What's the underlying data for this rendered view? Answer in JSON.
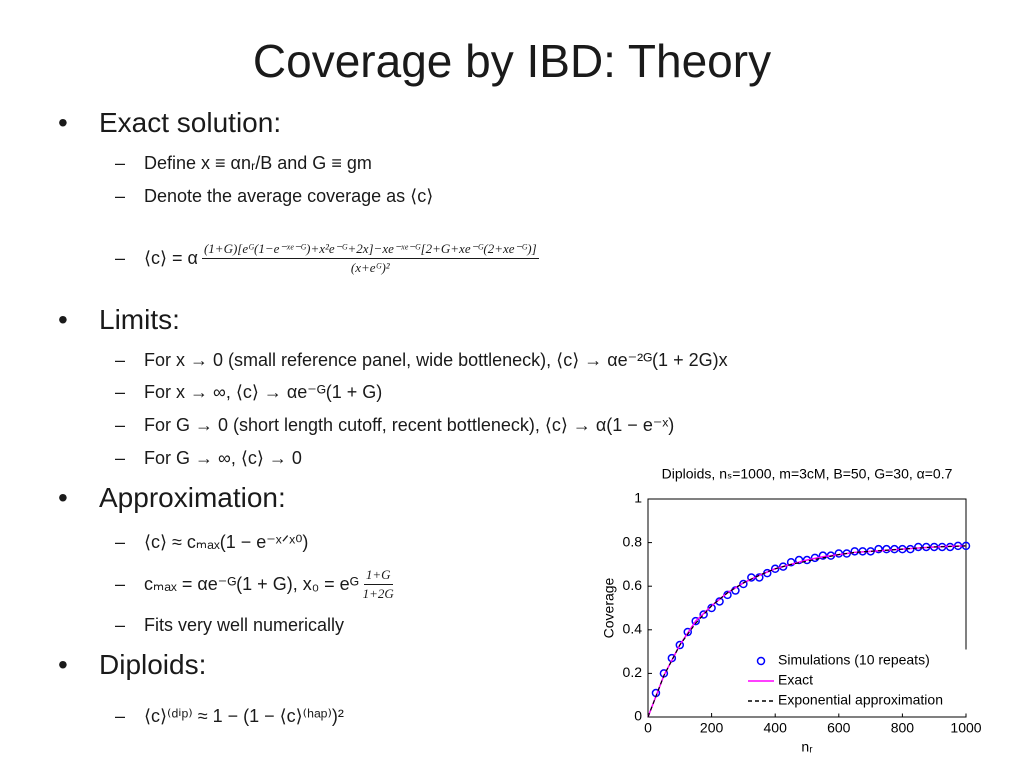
{
  "slide": {
    "title": "Coverage by IBD: Theory",
    "sections": [
      {
        "heading": "Exact solution:",
        "items": [
          "Define x ≡ αnᵣ/B and G ≡ gm",
          "Denote the average coverage as ⟨c⟩",
          {
            "text": "⟨c⟩ = α",
            "numerator": "(1+G)[eᴳ(1−e⁻ˣᵉ⁻ᴳ)+x²e⁻ᴳ+2x]−xe⁻ˣᵉ⁻ᴳ[2+G+xe⁻ᴳ(2+xe⁻ᴳ)]",
            "denominator": "(x+eᴳ)²"
          }
        ]
      },
      {
        "heading": "Limits:",
        "items": [
          "For x → 0 (small reference panel, wide bottleneck), ⟨c⟩ → αe⁻²ᴳ(1 + 2G)x",
          "For x → ∞, ⟨c⟩ → αe⁻ᴳ(1 + G)",
          "For G → 0 (short length cutoff, recent bottleneck), ⟨c⟩ → α(1 − e⁻ˣ)",
          "For G → ∞, ⟨c⟩ → 0"
        ]
      },
      {
        "heading": "Approximation:",
        "items": [
          "⟨c⟩ ≈ cₘₐₓ(1 − e⁻ˣᐟˣ⁰)",
          {
            "text": "cₘₐₓ = αe⁻ᴳ(1 + G), x₀ = eᴳ",
            "numerator": "1+G",
            "denominator": "1+2G"
          },
          "Fits very well numerically"
        ]
      },
      {
        "heading": "Diploids:",
        "items": [
          "⟨c⟩⁽ᵈⁱᵖ⁾ ≈ 1 − (1 − ⟨c⟩⁽ʰᵃᵖ⁾)²"
        ]
      }
    ]
  },
  "chart_data": {
    "type": "scatter",
    "title": "Diploids, nₛ=1000, m=3cM, B=50, G=30, α=0.7",
    "xlabel": "nᵣ",
    "ylabel": "Coverage",
    "xlim": [
      0,
      1000
    ],
    "ylim": [
      0,
      1
    ],
    "xticks": [
      0,
      200,
      400,
      600,
      800,
      1000
    ],
    "yticks": [
      0,
      0.2,
      0.4,
      0.6,
      0.8,
      1
    ],
    "legend": "lower right",
    "series": [
      {
        "name": "Simulations (10 repeats)",
        "color": "#0000ff",
        "kind": "scatter",
        "x": [
          25,
          50,
          75,
          100,
          125,
          150,
          175,
          200,
          225,
          250,
          275,
          300,
          325,
          350,
          375,
          400,
          425,
          450,
          475,
          500,
          525,
          550,
          575,
          600,
          625,
          650,
          675,
          700,
          725,
          750,
          775,
          800,
          825,
          850,
          875,
          900,
          925,
          950,
          975,
          1000
        ],
        "values": [
          0.11,
          0.2,
          0.27,
          0.33,
          0.39,
          0.44,
          0.47,
          0.5,
          0.53,
          0.56,
          0.58,
          0.61,
          0.64,
          0.64,
          0.66,
          0.68,
          0.69,
          0.71,
          0.72,
          0.72,
          0.73,
          0.74,
          0.74,
          0.75,
          0.75,
          0.76,
          0.76,
          0.76,
          0.77,
          0.77,
          0.77,
          0.77,
          0.77,
          0.78,
          0.78,
          0.78,
          0.78,
          0.78,
          0.785,
          0.785
        ]
      },
      {
        "name": "Exact",
        "color": "#ff00ff",
        "kind": "line",
        "x": [
          0,
          50,
          100,
          150,
          200,
          250,
          300,
          350,
          400,
          450,
          500,
          550,
          600,
          650,
          700,
          750,
          800,
          850,
          900,
          950,
          1000
        ],
        "values": [
          0,
          0.19,
          0.33,
          0.44,
          0.51,
          0.57,
          0.615,
          0.65,
          0.68,
          0.7,
          0.72,
          0.735,
          0.745,
          0.755,
          0.76,
          0.765,
          0.77,
          0.775,
          0.78,
          0.783,
          0.785
        ]
      },
      {
        "name": "Exponential approximation",
        "color": "#000000",
        "kind": "dashed",
        "x": [
          0,
          50,
          100,
          150,
          200,
          250,
          300,
          350,
          400,
          450,
          500,
          550,
          600,
          650,
          700,
          750,
          800,
          850,
          900,
          950,
          1000
        ],
        "values": [
          0,
          0.19,
          0.33,
          0.43,
          0.51,
          0.57,
          0.615,
          0.65,
          0.68,
          0.7,
          0.715,
          0.73,
          0.745,
          0.755,
          0.76,
          0.765,
          0.77,
          0.775,
          0.78,
          0.782,
          0.785
        ]
      }
    ]
  }
}
